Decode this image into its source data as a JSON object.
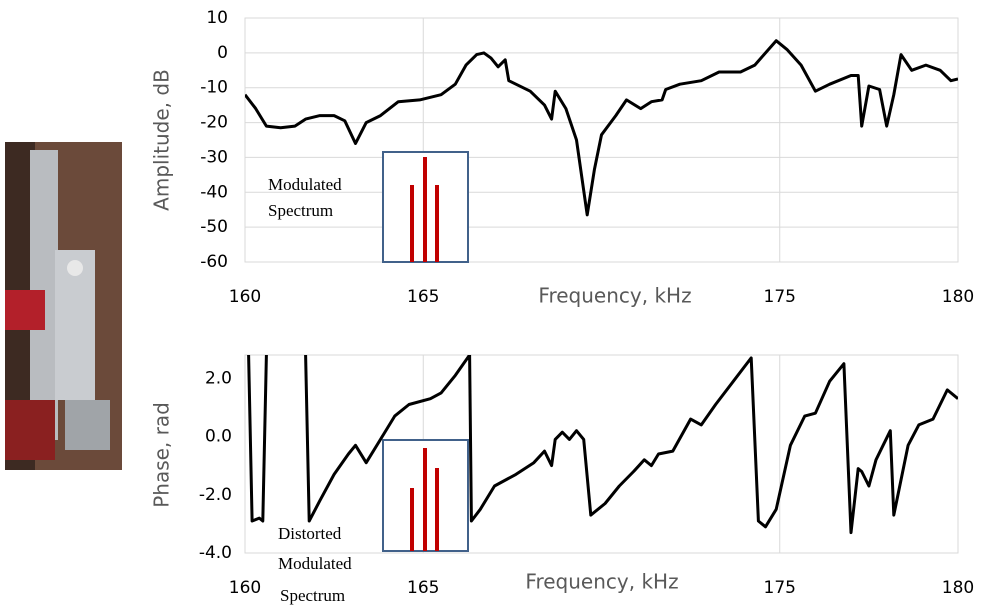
{
  "chart_data": [
    {
      "type": "line",
      "xlabel": "Frequency, kHz",
      "ylabel": "Amplitude, dB",
      "annotation": [
        "Modulated",
        "Spectrum"
      ],
      "xlim": [
        160,
        180
      ],
      "xticks": [
        160,
        165,
        175,
        180
      ],
      "ylim": [
        -60,
        10
      ],
      "yticks": [
        -60,
        -50,
        -40,
        -30,
        -20,
        -10,
        0,
        10
      ],
      "grid": "both",
      "color": "#000000",
      "x": [
        160,
        160.3,
        160.6,
        161,
        161.4,
        161.7,
        162.1,
        162.5,
        162.8,
        163.1,
        163.4,
        163.8,
        164.3,
        164.9,
        165.5,
        165.9,
        166.2,
        166.5,
        166.7,
        166.9,
        167.1,
        167.3,
        167.4,
        168,
        168.4,
        168.6,
        168.7,
        169,
        169.3,
        169.6,
        169.8,
        170,
        170.4,
        170.7,
        171.1,
        171.4,
        171.7,
        171.8,
        172.2,
        172.8,
        173.3,
        173.9,
        174.3,
        174.9,
        175.2,
        175.6,
        176,
        176.4,
        177,
        177.2,
        177.3,
        177.5,
        177.8,
        178,
        178.2,
        178.4,
        178.7,
        179.1,
        179.5,
        179.8,
        180
      ],
      "values": [
        -12,
        -16,
        -21,
        -21.5,
        -21,
        -19,
        -18,
        -18,
        -19.5,
        -26,
        -20,
        -18,
        -14,
        -13.5,
        -12,
        -9,
        -3.5,
        -0.5,
        0,
        -1.5,
        -4,
        -2,
        -8,
        -11,
        -15,
        -19,
        -11,
        -16,
        -25,
        -46.5,
        -33.5,
        -23.5,
        -18,
        -13.5,
        -16,
        -14,
        -13.5,
        -10.5,
        -9,
        -8,
        -5.5,
        -5.5,
        -3.5,
        3.5,
        1,
        -3.5,
        -11,
        -9,
        -6.5,
        -6.5,
        -21,
        -9.5,
        -10.5,
        -21,
        -12,
        -0.5,
        -5,
        -3.5,
        -5,
        -8,
        -7.5
      ]
    },
    {
      "type": "line",
      "xlabel": "Frequency, kHz",
      "ylabel": "Phase, rad",
      "annotation": [
        "Distorted",
        "Modulated",
        "Spectrum"
      ],
      "xlim": [
        160,
        180
      ],
      "xticks": [
        160,
        165,
        175,
        180
      ],
      "ylim": [
        -4,
        2.8
      ],
      "yticks": [
        {
          "value": -4,
          "label": "-4.0"
        },
        {
          "value": -2,
          "label": "-2.0"
        },
        {
          "value": 0,
          "label": "0.0"
        },
        {
          "value": 2,
          "label": "2.0"
        }
      ],
      "grid": "x",
      "color": "#000000",
      "x": [
        160.1,
        160.2,
        160.4,
        160.5,
        160.6,
        161.1,
        161.7,
        161.8,
        162.1,
        162.5,
        162.9,
        163.1,
        163.4,
        163.8,
        164.2,
        164.6,
        165.2,
        165.5,
        165.9,
        166.3,
        166.35,
        166.6,
        167,
        167.6,
        168.1,
        168.4,
        168.6,
        168.7,
        168.9,
        169.1,
        169.3,
        169.5,
        169.7,
        170.1,
        170.5,
        170.9,
        171.2,
        171.4,
        171.6,
        172,
        172.5,
        172.8,
        173.2,
        173.7,
        174.2,
        174.4,
        174.6,
        174.9,
        175.3,
        175.7,
        176,
        176.4,
        176.8,
        177,
        177.2,
        177.3,
        177.5,
        177.7,
        177.9,
        178.1,
        178.2,
        178.6,
        178.9,
        179.3,
        179.7,
        180
      ],
      "values": [
        2.8,
        -2.9,
        -2.8,
        -2.9,
        2.8,
        null,
        2.8,
        -2.9,
        -2.2,
        -1.3,
        -0.6,
        -0.3,
        -0.9,
        -0.1,
        0.7,
        1.1,
        1.3,
        1.5,
        2.1,
        2.8,
        -2.9,
        -2.5,
        -1.7,
        -1.3,
        -0.9,
        -0.5,
        -1,
        -0.1,
        0.15,
        -0.1,
        0.2,
        -0.1,
        -2.7,
        -2.3,
        -1.7,
        -1.2,
        -0.8,
        -1,
        -0.6,
        -0.5,
        0.6,
        0.4,
        1.1,
        1.9,
        2.7,
        -2.9,
        -3.1,
        -2.5,
        -0.3,
        0.7,
        0.8,
        1.9,
        2.5,
        -3.3,
        -1.1,
        -1.2,
        -1.7,
        -0.8,
        -0.3,
        0.2,
        -2.7,
        -0.3,
        0.4,
        0.6,
        1.6,
        1.3
      ]
    }
  ]
}
